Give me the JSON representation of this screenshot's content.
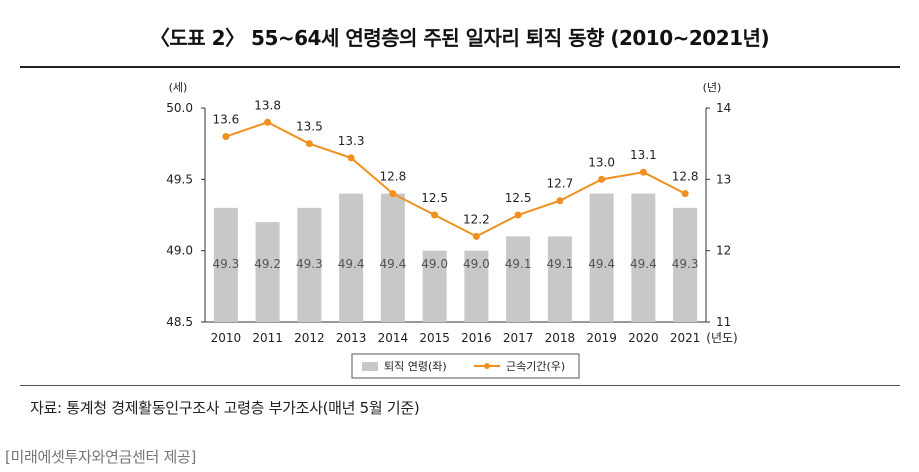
{
  "header": {
    "title": "〈도표 2〉 55~64세 연령층의 주된 일자리 퇴직 동향 (2010~2021년)"
  },
  "footer": {
    "source": "자료: 통계청 경제활동인구조사 고령층 부가조사(매년 5월 기준)",
    "credit": "[미래에셋투자와연금센터 제공]"
  },
  "colors": {
    "bar": "#c8c8c8",
    "line": "#f0901e",
    "axis": "#333333"
  },
  "chart_data": {
    "type": "bar",
    "categories": [
      "2010",
      "2011",
      "2012",
      "2013",
      "2014",
      "2015",
      "2016",
      "2017",
      "2018",
      "2019",
      "2020",
      "2021"
    ],
    "x_unit": "(년도)",
    "left_axis": {
      "unit": "(세)",
      "range": [
        48.5,
        50.0
      ],
      "ticks": [
        "48.5",
        "49.0",
        "49.5",
        "50.0"
      ]
    },
    "right_axis": {
      "unit": "(년)",
      "range": [
        11,
        14
      ],
      "ticks": [
        "11",
        "12",
        "13",
        "14"
      ]
    },
    "series": [
      {
        "name": "퇴직 연령(좌)",
        "type": "bar",
        "axis": "left",
        "values": [
          49.3,
          49.2,
          49.3,
          49.4,
          49.4,
          49.0,
          49.0,
          49.1,
          49.1,
          49.4,
          49.4,
          49.3
        ],
        "labels": [
          "49.3",
          "49.2",
          "49.3",
          "49.4",
          "49.4",
          "49.0",
          "49.0",
          "49.1",
          "49.1",
          "49.4",
          "49.4",
          "49.3"
        ]
      },
      {
        "name": "근속기간(우)",
        "type": "line",
        "axis": "right",
        "values": [
          13.6,
          13.8,
          13.5,
          13.3,
          12.8,
          12.5,
          12.2,
          12.5,
          12.7,
          13.0,
          13.1,
          12.8
        ],
        "labels": [
          "13.6",
          "13.8",
          "13.5",
          "13.3",
          "12.8",
          "12.5",
          "12.2",
          "12.5",
          "12.7",
          "13.0",
          "13.1",
          "12.8"
        ]
      }
    ],
    "legend": "bottom-center",
    "grid": false
  }
}
